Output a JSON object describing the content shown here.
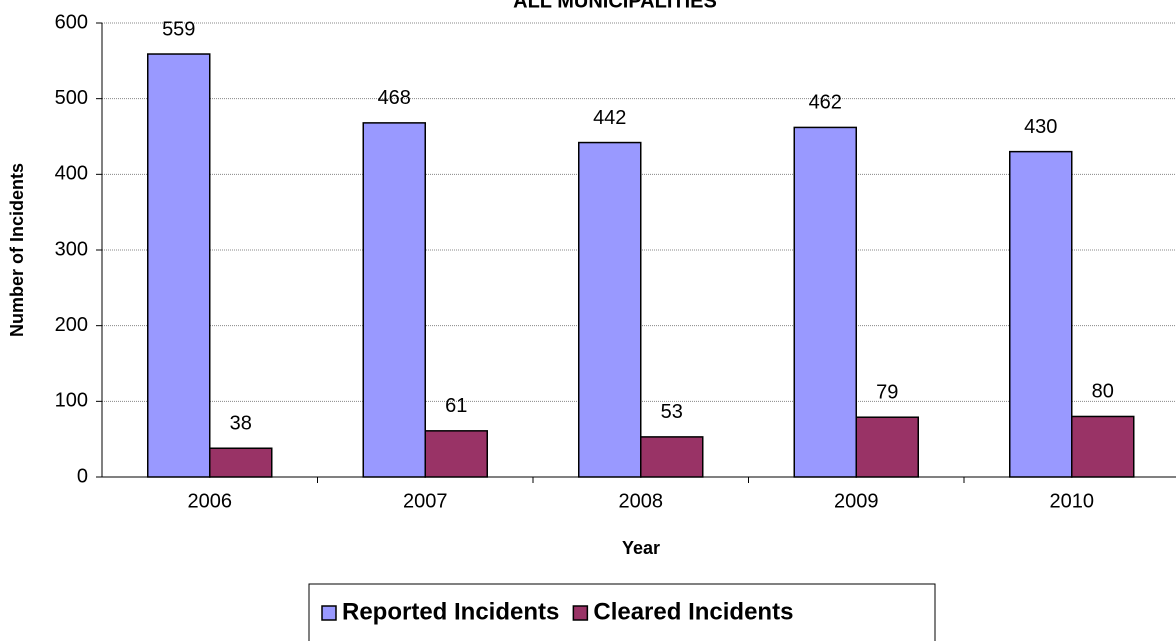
{
  "chart_data": {
    "type": "bar",
    "title": "ALL MUNICIPALITIES",
    "x_label": "Year",
    "y_label": "Number of Incidents",
    "categories": [
      "2006",
      "2007",
      "2008",
      "2009",
      "2010"
    ],
    "series": [
      {
        "name": "Reported Incidents",
        "color": "#9999ff",
        "values": [
          559,
          468,
          442,
          462,
          430
        ]
      },
      {
        "name": "Cleared Incidents",
        "color": "#993366",
        "values": [
          38,
          61,
          53,
          79,
          80
        ]
      }
    ],
    "ylim": [
      0,
      600
    ],
    "yticks": [
      0,
      100,
      200,
      300,
      400,
      500,
      600
    ],
    "grid": true,
    "legend": "bottom"
  }
}
